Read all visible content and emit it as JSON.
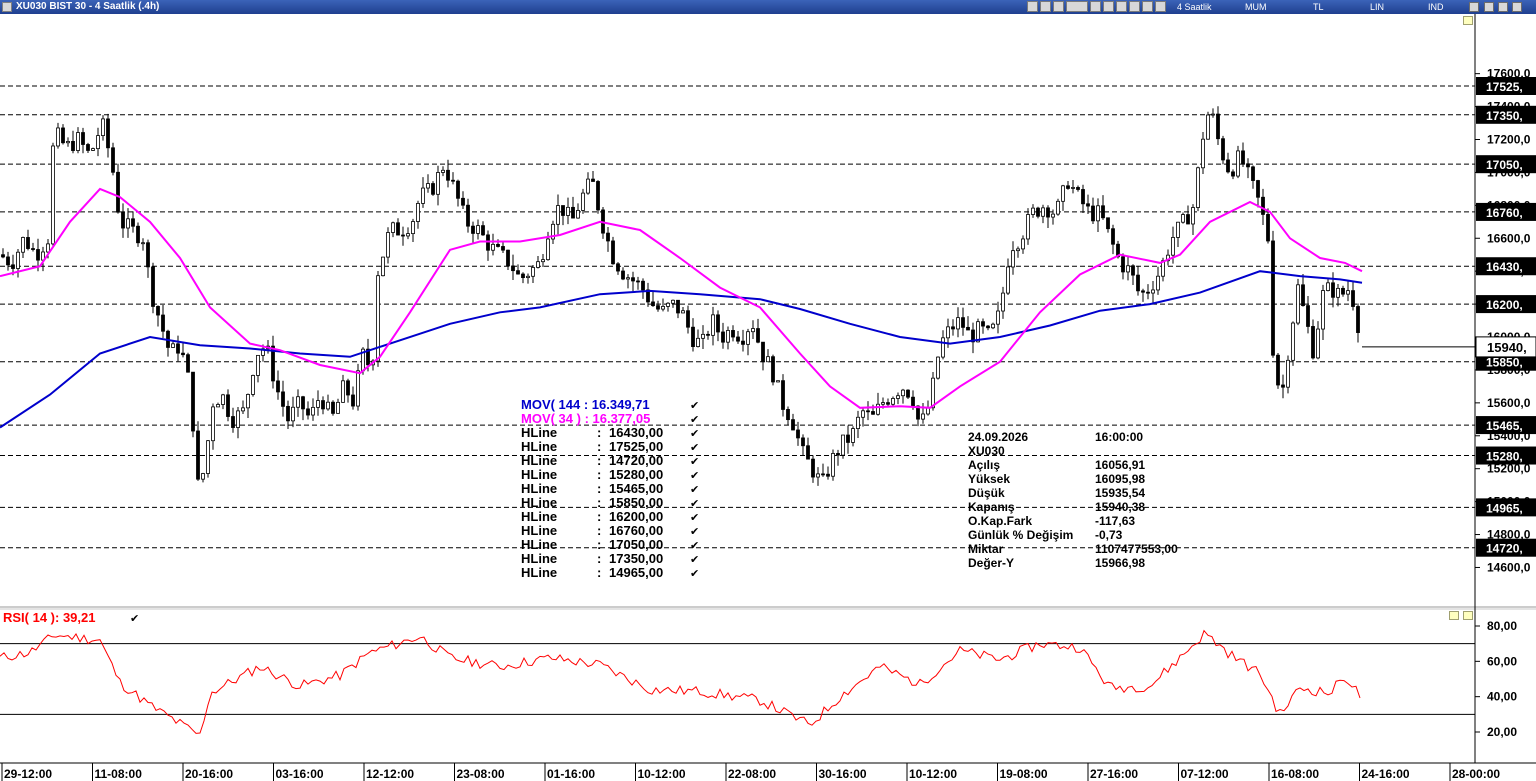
{
  "window": {
    "title": "XU030 BIST 30 - 4 Saatlik (.4h)",
    "toolbar": [
      "4 Saatlik",
      "MUM",
      "TL",
      "LIN",
      "IND"
    ]
  },
  "indicators": [
    {
      "label": "MOV( 144 : 16.349,71",
      "color": "#0000cc"
    },
    {
      "label": "MOV( 34 ) : 16.377,05",
      "color": "#ff00ff"
    }
  ],
  "hlines": [
    {
      "name": "HLine",
      "value": "16430,00",
      "level": 16430,
      "tag": "16430,"
    },
    {
      "name": "HLine",
      "value": "17525,00",
      "level": 17525,
      "tag": "17525,"
    },
    {
      "name": "HLine",
      "value": "14720,00",
      "level": 14720,
      "tag": "14720,"
    },
    {
      "name": "HLine",
      "value": "15280,00",
      "level": 15280,
      "tag": "15280,"
    },
    {
      "name": "HLine",
      "value": "15465,00",
      "level": 15465,
      "tag": "15465,"
    },
    {
      "name": "HLine",
      "value": "15850,00",
      "level": 15850,
      "tag": "15850,"
    },
    {
      "name": "HLine",
      "value": "16200,00",
      "level": 16200,
      "tag": "16200,"
    },
    {
      "name": "HLine",
      "value": "16760,00",
      "level": 16760,
      "tag": "16760,"
    },
    {
      "name": "HLine",
      "value": "17050,00",
      "level": 17050,
      "tag": "17050,"
    },
    {
      "name": "HLine",
      "value": "17350,00",
      "level": 17350,
      "tag": "17350,"
    },
    {
      "name": "HLine",
      "value": "14965,00",
      "level": 14965,
      "tag": "14965,"
    }
  ],
  "info_box": {
    "date": "24.09.2026",
    "time": "16:00:00",
    "symbol": "XU030",
    "rows": [
      {
        "label": "Açılış",
        "value": "16056,91"
      },
      {
        "label": "Yüksek",
        "value": "16095,98"
      },
      {
        "label": "Düşük",
        "value": "15935,54"
      },
      {
        "label": "Kapanış",
        "value": "15940,38"
      },
      {
        "label": "O.Kap.Fark",
        "value": "-117,63"
      },
      {
        "label": "Günlük % Değişim",
        "value": "-0,73"
      },
      {
        "label": "Miktar",
        "value": "1107477553,00"
      },
      {
        "label": "Değer-Y",
        "value": "15966,98"
      }
    ]
  },
  "rsi": {
    "label": "RSI( 14 ): 39,21",
    "ticks": [
      "80,00",
      "60,00",
      "40,00",
      "20,00"
    ],
    "levels": [
      70,
      30
    ],
    "color": "#ff0000"
  },
  "chart_data": [
    {
      "type": "candlestick",
      "y_ticks": [
        "17600,0",
        "17400,0",
        "17200,0",
        "17000,0",
        "16800,0",
        "16600,0",
        "16400,0",
        "16200,0",
        "16000,0",
        "15800,0",
        "15600,0",
        "15400,0",
        "15200,0",
        "15000,0",
        "14800,0",
        "14600,0"
      ],
      "ylim": [
        14520,
        17660
      ],
      "last_price_label": "15940,",
      "x_ticks": [
        "29-12:00",
        "11-08:00",
        "20-16:00",
        "03-16:00",
        "12-12:00",
        "23-08:00",
        "01-16:00",
        "10-12:00",
        "22-08:00",
        "30-16:00",
        "10-12:00",
        "19-08:00",
        "27-16:00",
        "07-12:00",
        "16-08:00",
        "24-16:00",
        "28-00:00"
      ],
      "close_path": [
        [
          0,
          16500
        ],
        [
          12,
          16450
        ],
        [
          24,
          16600
        ],
        [
          36,
          16500
        ],
        [
          48,
          16600
        ],
        [
          54,
          17250
        ],
        [
          66,
          17150
        ],
        [
          78,
          17200
        ],
        [
          90,
          17100
        ],
        [
          102,
          17300
        ],
        [
          112,
          17050
        ],
        [
          120,
          16700
        ],
        [
          132,
          16650
        ],
        [
          144,
          16600
        ],
        [
          150,
          16300
        ],
        [
          160,
          16100
        ],
        [
          170,
          15900
        ],
        [
          180,
          15950
        ],
        [
          190,
          15700
        ],
        [
          198,
          15100
        ],
        [
          205,
          15200
        ],
        [
          212,
          15600
        ],
        [
          222,
          15650
        ],
        [
          232,
          15500
        ],
        [
          244,
          15550
        ],
        [
          256,
          15900
        ],
        [
          266,
          15950
        ],
        [
          276,
          15700
        ],
        [
          288,
          15500
        ],
        [
          300,
          15600
        ],
        [
          310,
          15500
        ],
        [
          320,
          15650
        ],
        [
          332,
          15500
        ],
        [
          344,
          15700
        ],
        [
          354,
          15600
        ],
        [
          362,
          15900
        ],
        [
          372,
          15800
        ],
        [
          378,
          16400
        ],
        [
          390,
          16650
        ],
        [
          402,
          16650
        ],
        [
          412,
          16700
        ],
        [
          420,
          16850
        ],
        [
          432,
          16900
        ],
        [
          444,
          17050
        ],
        [
          454,
          16900
        ],
        [
          466,
          16700
        ],
        [
          478,
          16650
        ],
        [
          490,
          16550
        ],
        [
          500,
          16500
        ],
        [
          510,
          16450
        ],
        [
          520,
          16350
        ],
        [
          530,
          16400
        ],
        [
          540,
          16450
        ],
        [
          550,
          16700
        ],
        [
          560,
          16800
        ],
        [
          572,
          16700
        ],
        [
          582,
          16850
        ],
        [
          592,
          16950
        ],
        [
          602,
          16700
        ],
        [
          612,
          16500
        ],
        [
          622,
          16400
        ],
        [
          632,
          16350
        ],
        [
          642,
          16300
        ],
        [
          652,
          16200
        ],
        [
          662,
          16150
        ],
        [
          672,
          16200
        ],
        [
          682,
          16150
        ],
        [
          692,
          16000
        ],
        [
          702,
          15950
        ],
        [
          712,
          16100
        ],
        [
          722,
          16000
        ],
        [
          732,
          16050
        ],
        [
          742,
          16000
        ],
        [
          752,
          16100
        ],
        [
          762,
          15900
        ],
        [
          772,
          15800
        ],
        [
          782,
          15600
        ],
        [
          792,
          15500
        ],
        [
          802,
          15300
        ],
        [
          812,
          15200
        ],
        [
          822,
          15100
        ],
        [
          832,
          15250
        ],
        [
          842,
          15350
        ],
        [
          852,
          15400
        ],
        [
          862,
          15550
        ],
        [
          872,
          15500
        ],
        [
          882,
          15600
        ],
        [
          892,
          15650
        ],
        [
          902,
          15700
        ],
        [
          912,
          15650
        ],
        [
          920,
          15450
        ],
        [
          930,
          15600
        ],
        [
          940,
          15950
        ],
        [
          950,
          16050
        ],
        [
          960,
          16100
        ],
        [
          970,
          16000
        ],
        [
          980,
          16050
        ],
        [
          990,
          16000
        ],
        [
          1000,
          16150
        ],
        [
          1010,
          16550
        ],
        [
          1020,
          16600
        ],
        [
          1032,
          16750
        ],
        [
          1044,
          16800
        ],
        [
          1056,
          16750
        ],
        [
          1068,
          16950
        ],
        [
          1078,
          16850
        ],
        [
          1090,
          16750
        ],
        [
          1100,
          16750
        ],
        [
          1110,
          16600
        ],
        [
          1120,
          16450
        ],
        [
          1130,
          16400
        ],
        [
          1140,
          16250
        ],
        [
          1150,
          16300
        ],
        [
          1160,
          16400
        ],
        [
          1172,
          16600
        ],
        [
          1184,
          16700
        ],
        [
          1194,
          16800
        ],
        [
          1202,
          17200
        ],
        [
          1210,
          17400
        ],
        [
          1220,
          17150
        ],
        [
          1230,
          17000
        ],
        [
          1240,
          17100
        ],
        [
          1250,
          16950
        ],
        [
          1260,
          16800
        ],
        [
          1268,
          16600
        ],
        [
          1274,
          15800
        ],
        [
          1282,
          15650
        ],
        [
          1290,
          16000
        ],
        [
          1298,
          16300
        ],
        [
          1306,
          16100
        ],
        [
          1314,
          15900
        ],
        [
          1322,
          16250
        ],
        [
          1330,
          16300
        ],
        [
          1340,
          16250
        ],
        [
          1350,
          16300
        ],
        [
          1356,
          16150
        ],
        [
          1362,
          15940
        ]
      ],
      "series": [
        {
          "name": "MOV( 144",
          "points": [
            [
              0,
              15450
            ],
            [
              50,
              15650
            ],
            [
              100,
              15900
            ],
            [
              150,
              16000
            ],
            [
              200,
              15950
            ],
            [
              250,
              15930
            ],
            [
              300,
              15900
            ],
            [
              350,
              15880
            ],
            [
              400,
              15980
            ],
            [
              450,
              16080
            ],
            [
              500,
              16150
            ],
            [
              540,
              16180
            ],
            [
              600,
              16260
            ],
            [
              650,
              16280
            ],
            [
              700,
              16260
            ],
            [
              760,
              16230
            ],
            [
              800,
              16170
            ],
            [
              850,
              16080
            ],
            [
              900,
              16000
            ],
            [
              950,
              15960
            ],
            [
              1000,
              16000
            ],
            [
              1050,
              16070
            ],
            [
              1100,
              16160
            ],
            [
              1150,
              16200
            ],
            [
              1200,
              16270
            ],
            [
              1260,
              16400
            ],
            [
              1300,
              16370
            ],
            [
              1340,
              16350
            ],
            [
              1362,
              16330
            ]
          ]
        },
        {
          "name": "MOV( 34 )",
          "points": [
            [
              0,
              16370
            ],
            [
              40,
              16430
            ],
            [
              70,
              16700
            ],
            [
              100,
              16900
            ],
            [
              120,
              16850
            ],
            [
              150,
              16700
            ],
            [
              180,
              16480
            ],
            [
              210,
              16180
            ],
            [
              250,
              15960
            ],
            [
              280,
              15920
            ],
            [
              320,
              15830
            ],
            [
              360,
              15780
            ],
            [
              380,
              15880
            ],
            [
              410,
              16150
            ],
            [
              450,
              16530
            ],
            [
              480,
              16580
            ],
            [
              520,
              16580
            ],
            [
              560,
              16620
            ],
            [
              600,
              16700
            ],
            [
              640,
              16650
            ],
            [
              680,
              16480
            ],
            [
              720,
              16300
            ],
            [
              760,
              16180
            ],
            [
              800,
              15900
            ],
            [
              830,
              15700
            ],
            [
              860,
              15570
            ],
            [
              900,
              15580
            ],
            [
              930,
              15570
            ],
            [
              960,
              15700
            ],
            [
              1000,
              15850
            ],
            [
              1040,
              16150
            ],
            [
              1080,
              16380
            ],
            [
              1120,
              16500
            ],
            [
              1160,
              16450
            ],
            [
              1180,
              16500
            ],
            [
              1210,
              16700
            ],
            [
              1250,
              16820
            ],
            [
              1270,
              16760
            ],
            [
              1290,
              16600
            ],
            [
              1320,
              16480
            ],
            [
              1345,
              16450
            ],
            [
              1362,
              16400
            ]
          ]
        },
        {
          "name": "RSI( 14 )",
          "points": [
            [
              0,
              62
            ],
            [
              30,
              65
            ],
            [
              55,
              75
            ],
            [
              100,
              72
            ],
            [
              120,
              48
            ],
            [
              150,
              35
            ],
            [
              200,
              18
            ],
            [
              210,
              42
            ],
            [
              260,
              57
            ],
            [
              300,
              46
            ],
            [
              340,
              52
            ],
            [
              370,
              65
            ],
            [
              420,
              74
            ],
            [
              450,
              62
            ],
            [
              500,
              57
            ],
            [
              550,
              62
            ],
            [
              600,
              58
            ],
            [
              650,
              44
            ],
            [
              700,
              43
            ],
            [
              760,
              38
            ],
            [
              810,
              24
            ],
            [
              840,
              40
            ],
            [
              880,
              57
            ],
            [
              920,
              47
            ],
            [
              960,
              66
            ],
            [
              1000,
              61
            ],
            [
              1040,
              70
            ],
            [
              1080,
              68
            ],
            [
              1110,
              45
            ],
            [
              1150,
              46
            ],
            [
              1180,
              62
            ],
            [
              1205,
              76
            ],
            [
              1230,
              64
            ],
            [
              1260,
              53
            ],
            [
              1280,
              30
            ],
            [
              1300,
              45
            ],
            [
              1330,
              42
            ],
            [
              1345,
              52
            ],
            [
              1362,
              39
            ]
          ]
        }
      ]
    }
  ]
}
